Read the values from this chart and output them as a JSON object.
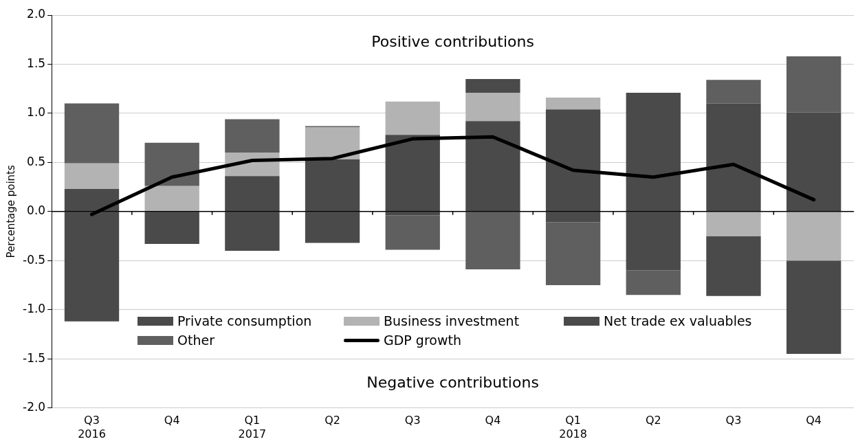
{
  "chart_data": {
    "type": "bar",
    "stacked": true,
    "ylabel": "Percentage points",
    "categories": [
      "Q3\n2016",
      "Q4",
      "Q1\n2017",
      "Q2",
      "Q3",
      "Q4",
      "Q1\n2018",
      "Q2",
      "Q3",
      "Q4"
    ],
    "series": [
      {
        "name": "Private consumption",
        "color": "#4a4a4a",
        "values": [
          0.23,
          null,
          0.36,
          0.53,
          0.78,
          0.92,
          1.04,
          1.21,
          1.1,
          1.01
        ]
      },
      {
        "name": "Business investment",
        "color": "#b3b3b3",
        "values": [
          0.26,
          0.26,
          0.24,
          0.33,
          0.34,
          0.29,
          0.12,
          null,
          -0.25,
          -0.5
        ]
      },
      {
        "name": "Net trade ex valuables",
        "color": "#4a4a4a",
        "values": [
          -1.12,
          -0.33,
          -0.4,
          -0.32,
          -0.04,
          0.14,
          -0.11,
          -0.6,
          -0.61,
          -0.95
        ]
      },
      {
        "name": "Other",
        "color": "#5f5f5f",
        "values": [
          0.61,
          0.44,
          0.34,
          0.01,
          -0.35,
          -0.59,
          -0.64,
          -0.25,
          0.24,
          0.57
        ]
      },
      {
        "name": "GDP growth",
        "type": "line",
        "color": "#000000",
        "values": [
          -0.03,
          0.35,
          0.52,
          0.54,
          0.74,
          0.76,
          0.42,
          0.35,
          0.48,
          0.12
        ]
      }
    ],
    "ylim": [
      -2.0,
      2.0
    ],
    "yticks": [
      {
        "value": -2,
        "label": "-2.0"
      },
      {
        "value": -1.5,
        "label": "-1.5"
      },
      {
        "value": -1,
        "label": "-1.0"
      },
      {
        "value": -0.5,
        "label": "-0.5"
      },
      {
        "value": 0,
        "label": "0.0"
      },
      {
        "value": 0.5,
        "label": "0.5"
      },
      {
        "value": 1,
        "label": "1.0"
      },
      {
        "value": 1.5,
        "label": "1.5"
      },
      {
        "value": 2,
        "label": "2.0"
      }
    ],
    "grid": "y",
    "legend": "bottom left",
    "marker": "none",
    "line_style": "solid",
    "annotations": [
      "Positive contributions",
      "Negative contributions"
    ]
  }
}
